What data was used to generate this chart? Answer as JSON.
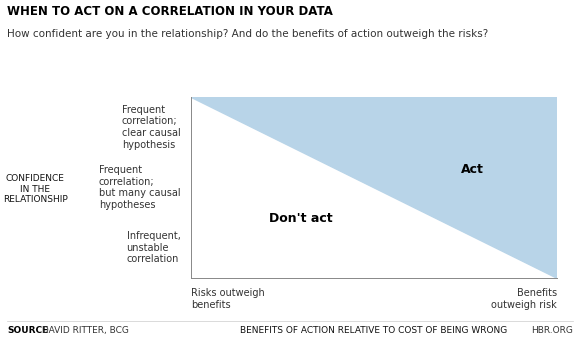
{
  "title": "WHEN TO ACT ON A CORRELATION IN YOUR DATA",
  "subtitle": "How confident are you in the relationship? And do the benefits of action outweigh the risks?",
  "ylabel_outer": "CONFIDENCE\nIN THE\nRELATIONSHIP",
  "xlabel_outer": "BENEFITS OF ACTION RELATIVE TO COST OF BEING WRONG",
  "ytick_labels": [
    "Infrequent,\nunstable\ncorrelation",
    "Frequent\ncorrelation;\nbut many causal\nhypotheses",
    "Frequent\ncorrelation;\nclear causal\nhypothesis"
  ],
  "xtick_left": "Risks outweigh\nbenefits",
  "xtick_right": "Benefits\noutweigh risk",
  "act_label": "Act",
  "dont_act_label": "Don't act",
  "fill_color": "#b8d4e8",
  "bg_color": "#ffffff",
  "source_bold": "SOURCE",
  "source_rest": " DAVID RITTER, BCG",
  "hbr_text": "HBR.ORG",
  "title_fontsize": 8.5,
  "subtitle_fontsize": 7.5,
  "label_fontsize": 6.5,
  "tick_fontsize": 7,
  "act_fontsize": 9,
  "footer_fontsize": 6.5
}
